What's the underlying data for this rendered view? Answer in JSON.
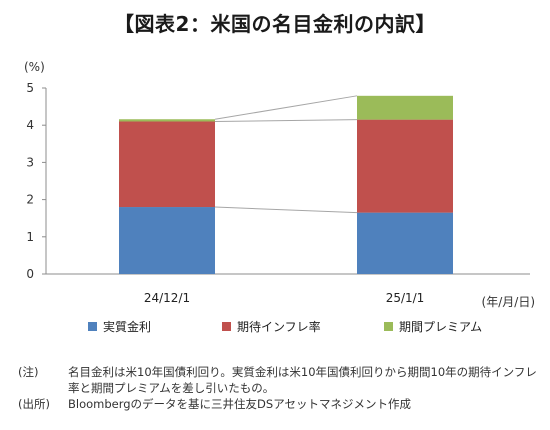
{
  "title": "【図表2：米国の名目金利の内訳】",
  "chart_data": {
    "type": "bar",
    "stacked": true,
    "categories": [
      "24/12/1",
      "25/1/1"
    ],
    "series": [
      {
        "name": "実質金利",
        "color": "#4f81bd",
        "values": [
          1.8,
          1.65
        ]
      },
      {
        "name": "期待インフレ率",
        "color": "#c0504d",
        "values": [
          2.3,
          2.5
        ]
      },
      {
        "name": "期間プレミアム",
        "color": "#9bbb59",
        "values": [
          0.06,
          0.64
        ]
      }
    ],
    "ylabel": "(%)",
    "xlabel": "(年/月/日)",
    "ylim": [
      0,
      5
    ],
    "yticks": [
      0,
      1,
      2,
      3,
      4,
      5
    ],
    "grid": false,
    "legend_position": "bottom",
    "connector_color": "#a6a6a6"
  },
  "notes": [
    {
      "label": "(注)",
      "text": "名目金利は米10年国債利回り。実質金利は米10年国債利回りから期間10年の期待インフレ率と期間プレミアムを差し引いたもの。"
    },
    {
      "label": "(出所)",
      "text": "Bloombergのデータを基に三井住友DSアセットマネジメント作成"
    }
  ]
}
